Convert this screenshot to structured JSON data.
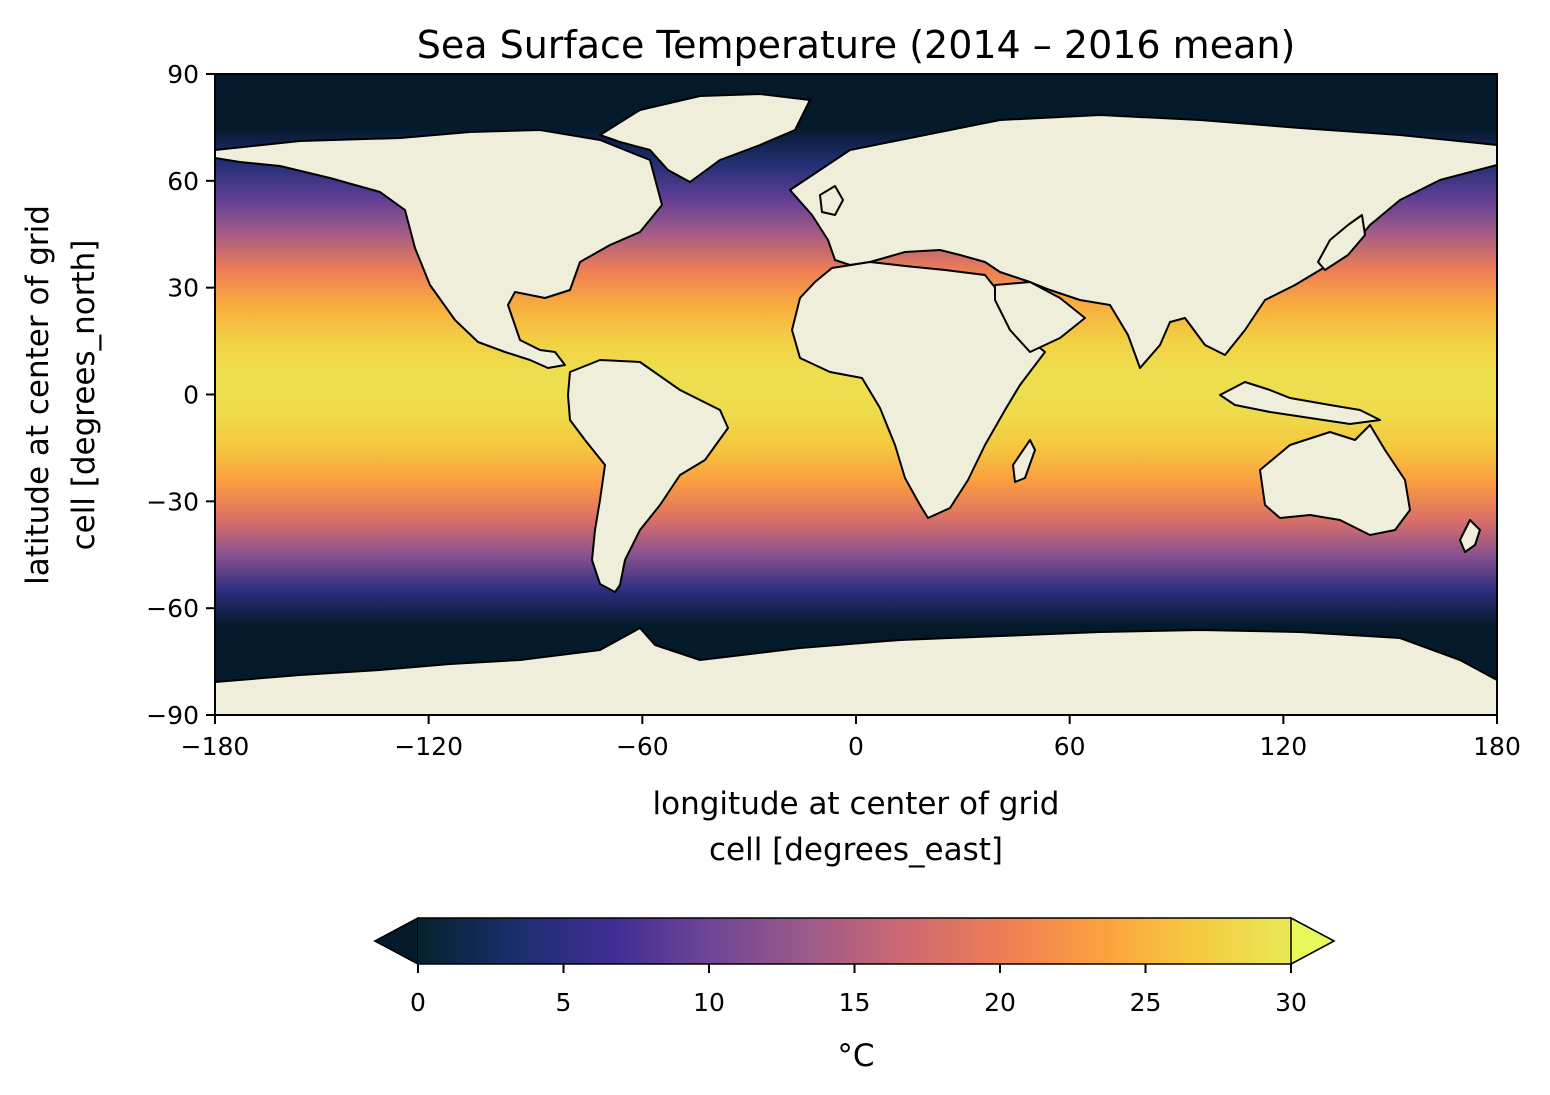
{
  "title": "Sea Surface Temperature (2014 – 2016 mean)",
  "map": {
    "projection": "PlateCarree",
    "land_color": "#efeedb",
    "coastline_color": "#000000"
  },
  "chart_data": {
    "type": "heatmap",
    "variable": "sea surface temperature",
    "period": "2014 – 2016 mean",
    "x": {
      "label_line1": "longitude at center of grid",
      "label_line2": "cell [degrees_east]",
      "range": [
        -180,
        180
      ],
      "ticks": [
        -180,
        -120,
        -60,
        0,
        60,
        120,
        180
      ],
      "tick_labels": [
        "−180",
        "−120",
        "−60",
        "0",
        "60",
        "120",
        "180"
      ]
    },
    "y": {
      "label_line1": "latitude at center of grid",
      "label_line2": "cell [degrees_north]",
      "range": [
        -90,
        90
      ],
      "ticks": [
        90,
        60,
        30,
        0,
        -30,
        -60,
        -90
      ],
      "tick_labels": [
        "90",
        "60",
        "30",
        "0",
        "−30",
        "−60",
        "−90"
      ]
    },
    "colorbar": {
      "label": "°C",
      "range": [
        0,
        30
      ],
      "extend": "both",
      "ticks": [
        0,
        5,
        10,
        15,
        20,
        25,
        30
      ],
      "tick_labels": [
        "0",
        "5",
        "10",
        "15",
        "20",
        "25",
        "30"
      ],
      "colormap": "thermal",
      "colormap_stops": [
        "#05202e",
        "#1a2f6c",
        "#3f2d93",
        "#6e4596",
        "#9b5a8a",
        "#cd6872",
        "#ed7d56",
        "#fb9e3f",
        "#f5c93e",
        "#e9e957"
      ],
      "extend_min_color": "#04192a",
      "extend_max_color": "#e8fa5b"
    },
    "sst_by_latitude": {
      "lat": [
        85,
        75,
        65,
        55,
        45,
        35,
        25,
        15,
        5,
        -5,
        -15,
        -25,
        -35,
        -45,
        -55,
        -65,
        -75,
        -85
      ],
      "celsius": [
        -1.5,
        0,
        4,
        9,
        14,
        20,
        24.5,
        27.5,
        29,
        28.5,
        26.5,
        23,
        18,
        12,
        5,
        -0.5,
        -1.5,
        -1.5
      ]
    }
  }
}
